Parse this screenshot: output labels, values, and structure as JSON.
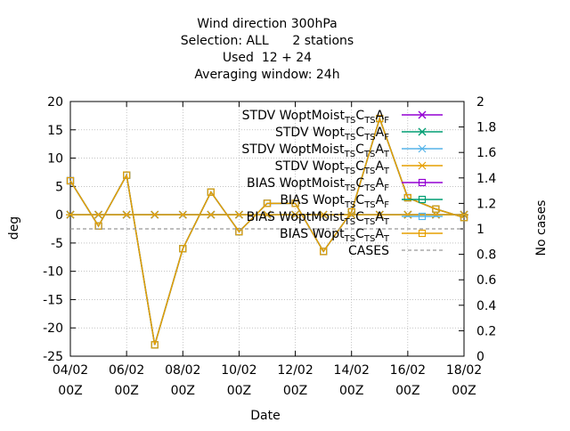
{
  "chart_data": {
    "type": "line",
    "title": [
      "Wind direction 300hPa",
      "Selection: ALL      2 stations",
      "Used  12 + 24",
      "Averaging window: 24h"
    ],
    "xlabel": "Date",
    "ylabel": "deg",
    "y2label": "No cases",
    "ylim": [
      -25,
      20
    ],
    "y2lim": [
      0,
      2
    ],
    "xlim": [
      0,
      14
    ],
    "grid": true,
    "legend_position": "top-right",
    "x_ticks": [
      {
        "x": 0,
        "line1": "04/02",
        "line2": "00Z"
      },
      {
        "x": 2,
        "line1": "06/02",
        "line2": "00Z"
      },
      {
        "x": 4,
        "line1": "08/02",
        "line2": "00Z"
      },
      {
        "x": 6,
        "line1": "10/02",
        "line2": "00Z"
      },
      {
        "x": 8,
        "line1": "12/02",
        "line2": "00Z"
      },
      {
        "x": 10,
        "line1": "14/02",
        "line2": "00Z"
      },
      {
        "x": 12,
        "line1": "16/02",
        "line2": "00Z"
      },
      {
        "x": 14,
        "line1": "18/02",
        "line2": "00Z"
      }
    ],
    "y_ticks": [
      -25,
      -20,
      -15,
      -10,
      -5,
      0,
      5,
      10,
      15,
      20
    ],
    "y2_ticks": [
      "0",
      "0.2",
      "0.4",
      "0.6",
      "0.8",
      "1",
      "1.2",
      "1.4",
      "1.6",
      "1.8",
      "2"
    ],
    "series": [
      {
        "name": "STDV WoptMoist TS CTS AF",
        "label_parts": [
          "STDV WoptMoist",
          "TS",
          "C",
          "TS",
          "A",
          "F"
        ],
        "color": "#9400d3",
        "marker": "x",
        "axis": "y1",
        "x": [
          0,
          1,
          2,
          3,
          4,
          5,
          6,
          7,
          8,
          9,
          10,
          11,
          12,
          13,
          14
        ],
        "values": [
          0,
          0,
          0,
          0,
          0,
          0,
          0,
          0,
          0,
          0,
          0,
          0,
          0,
          0,
          0
        ]
      },
      {
        "name": "STDV Wopt TS CTS AF",
        "label_parts": [
          "STDV Wopt",
          "TS",
          "C",
          "TS",
          "A",
          "F"
        ],
        "color": "#009e73",
        "marker": "x",
        "axis": "y1",
        "x": [
          0,
          1,
          2,
          3,
          4,
          5,
          6,
          7,
          8,
          9,
          10,
          11,
          12,
          13,
          14
        ],
        "values": [
          0,
          0,
          0,
          0,
          0,
          0,
          0,
          0,
          0,
          0,
          0,
          0,
          0,
          0,
          0
        ]
      },
      {
        "name": "STDV WoptMoist TS CTS AT",
        "label_parts": [
          "STDV WoptMoist",
          "TS",
          "C",
          "TS",
          "A",
          "T"
        ],
        "color": "#56b4e9",
        "marker": "star",
        "axis": "y1",
        "x": [
          0,
          1,
          2,
          3,
          4,
          5,
          6,
          7,
          8,
          9,
          10,
          11,
          12,
          13,
          14
        ],
        "values": [
          0,
          0,
          0,
          0,
          0,
          0,
          0,
          0,
          0,
          0,
          0,
          0,
          0,
          0,
          0
        ]
      },
      {
        "name": "STDV Wopt TS CTS AT",
        "label_parts": [
          "STDV Wopt",
          "TS",
          "C",
          "TS",
          "A",
          "T"
        ],
        "color": "#e69f00",
        "marker": "star",
        "axis": "y1",
        "x": [
          0,
          1,
          2,
          3,
          4,
          5,
          6,
          7,
          8,
          9,
          10,
          11,
          12,
          13,
          14
        ],
        "values": [
          0,
          0,
          0,
          0,
          0,
          0,
          0,
          0,
          0,
          0,
          0,
          0,
          0,
          0,
          0
        ]
      },
      {
        "name": "BIAS WoptMoist TS CTS AF",
        "label_parts": [
          "BIAS WoptMoist",
          "TS",
          "C",
          "TS",
          "A",
          "F"
        ],
        "color": "#9400d3",
        "marker": "square",
        "axis": "y1",
        "x": [
          0,
          1,
          2,
          3,
          4,
          5,
          6,
          7,
          8,
          9,
          10,
          11,
          12,
          13,
          14
        ],
        "values": [
          6,
          -2,
          7,
          -23,
          -6,
          4,
          -3,
          2,
          2,
          -6.5,
          0.5,
          17,
          3,
          1,
          -0.5
        ]
      },
      {
        "name": "BIAS Wopt TS CTS AF",
        "label_parts": [
          "BIAS Wopt",
          "TS",
          "C",
          "TS",
          "A",
          "F"
        ],
        "color": "#009e73",
        "marker": "square",
        "axis": "y1",
        "x": [
          0,
          1,
          2,
          3,
          4,
          5,
          6,
          7,
          8,
          9,
          10,
          11,
          12,
          13,
          14
        ],
        "values": [
          6,
          -2,
          7,
          -23,
          -6,
          4,
          -3,
          2,
          2,
          -6.5,
          0.5,
          17,
          3,
          1,
          -0.5
        ]
      },
      {
        "name": "BIAS WoptMoist TS CTS AT",
        "label_parts": [
          "BIAS WoptMoist",
          "TS",
          "C",
          "TS",
          "A",
          "T"
        ],
        "color": "#56b4e9",
        "marker": "square",
        "axis": "y1",
        "x": [
          0,
          1,
          2,
          3,
          4,
          5,
          6,
          7,
          8,
          9,
          10,
          11,
          12,
          13,
          14
        ],
        "values": [
          6,
          -2,
          7,
          -23,
          -6,
          4,
          -3,
          2,
          2,
          -6.5,
          0.5,
          17,
          3,
          1,
          -0.5
        ]
      },
      {
        "name": "BIAS Wopt TS CTS AT",
        "label_parts": [
          "BIAS Wopt",
          "TS",
          "C",
          "TS",
          "A",
          "T"
        ],
        "color": "#e69f00",
        "marker": "square",
        "axis": "y1",
        "x": [
          0,
          1,
          2,
          3,
          4,
          5,
          6,
          7,
          8,
          9,
          10,
          11,
          12,
          13,
          14
        ],
        "values": [
          6,
          -2,
          7,
          -23,
          -6,
          4,
          -3,
          2,
          2,
          -6.5,
          0.5,
          17,
          3,
          1,
          -0.5
        ]
      },
      {
        "name": "CASES",
        "label_parts": [
          "CASES"
        ],
        "color": "#999999",
        "marker": "none",
        "dashed": true,
        "axis": "y2",
        "x": [
          0,
          14
        ],
        "values": [
          1,
          1
        ]
      }
    ]
  }
}
